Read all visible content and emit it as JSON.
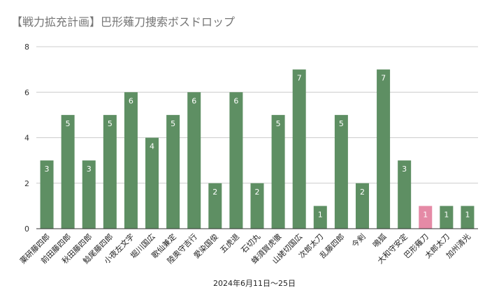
{
  "chart_data": {
    "type": "bar",
    "title": "【戦力拡充計画】巴形薙刀捜索ボスドロップ",
    "xlabel": "2024年6月11日～25日",
    "ylabel": "",
    "ylim": [
      0,
      8
    ],
    "yticks": [
      0,
      2,
      4,
      6,
      8
    ],
    "grid": true,
    "categories": [
      "薬研藤四郎",
      "前田藤四郎",
      "秋田藤四郎",
      "鯰尾藤四郎",
      "小夜左文字",
      "堀川国広",
      "歌仙兼定",
      "陸奥守吉行",
      "愛染国俊",
      "五虎退",
      "石切丸",
      "蜂須賀虎徹",
      "山姥切国広",
      "次郎太刀",
      "乱藤四郎",
      "今剣",
      "鳴狐",
      "大和守安定",
      "巴形薙刀",
      "太郎太刀",
      "加州清光"
    ],
    "values": [
      3,
      5,
      3,
      5,
      6,
      4,
      5,
      6,
      2,
      6,
      2,
      5,
      7,
      1,
      5,
      2,
      7,
      3,
      1,
      1,
      1
    ],
    "colors": {
      "bar": "#5e8f63",
      "highlight": "#e58aa6",
      "grid": "#cccccc",
      "axis": "#333333"
    },
    "highlight_category": "巴形薙刀"
  }
}
